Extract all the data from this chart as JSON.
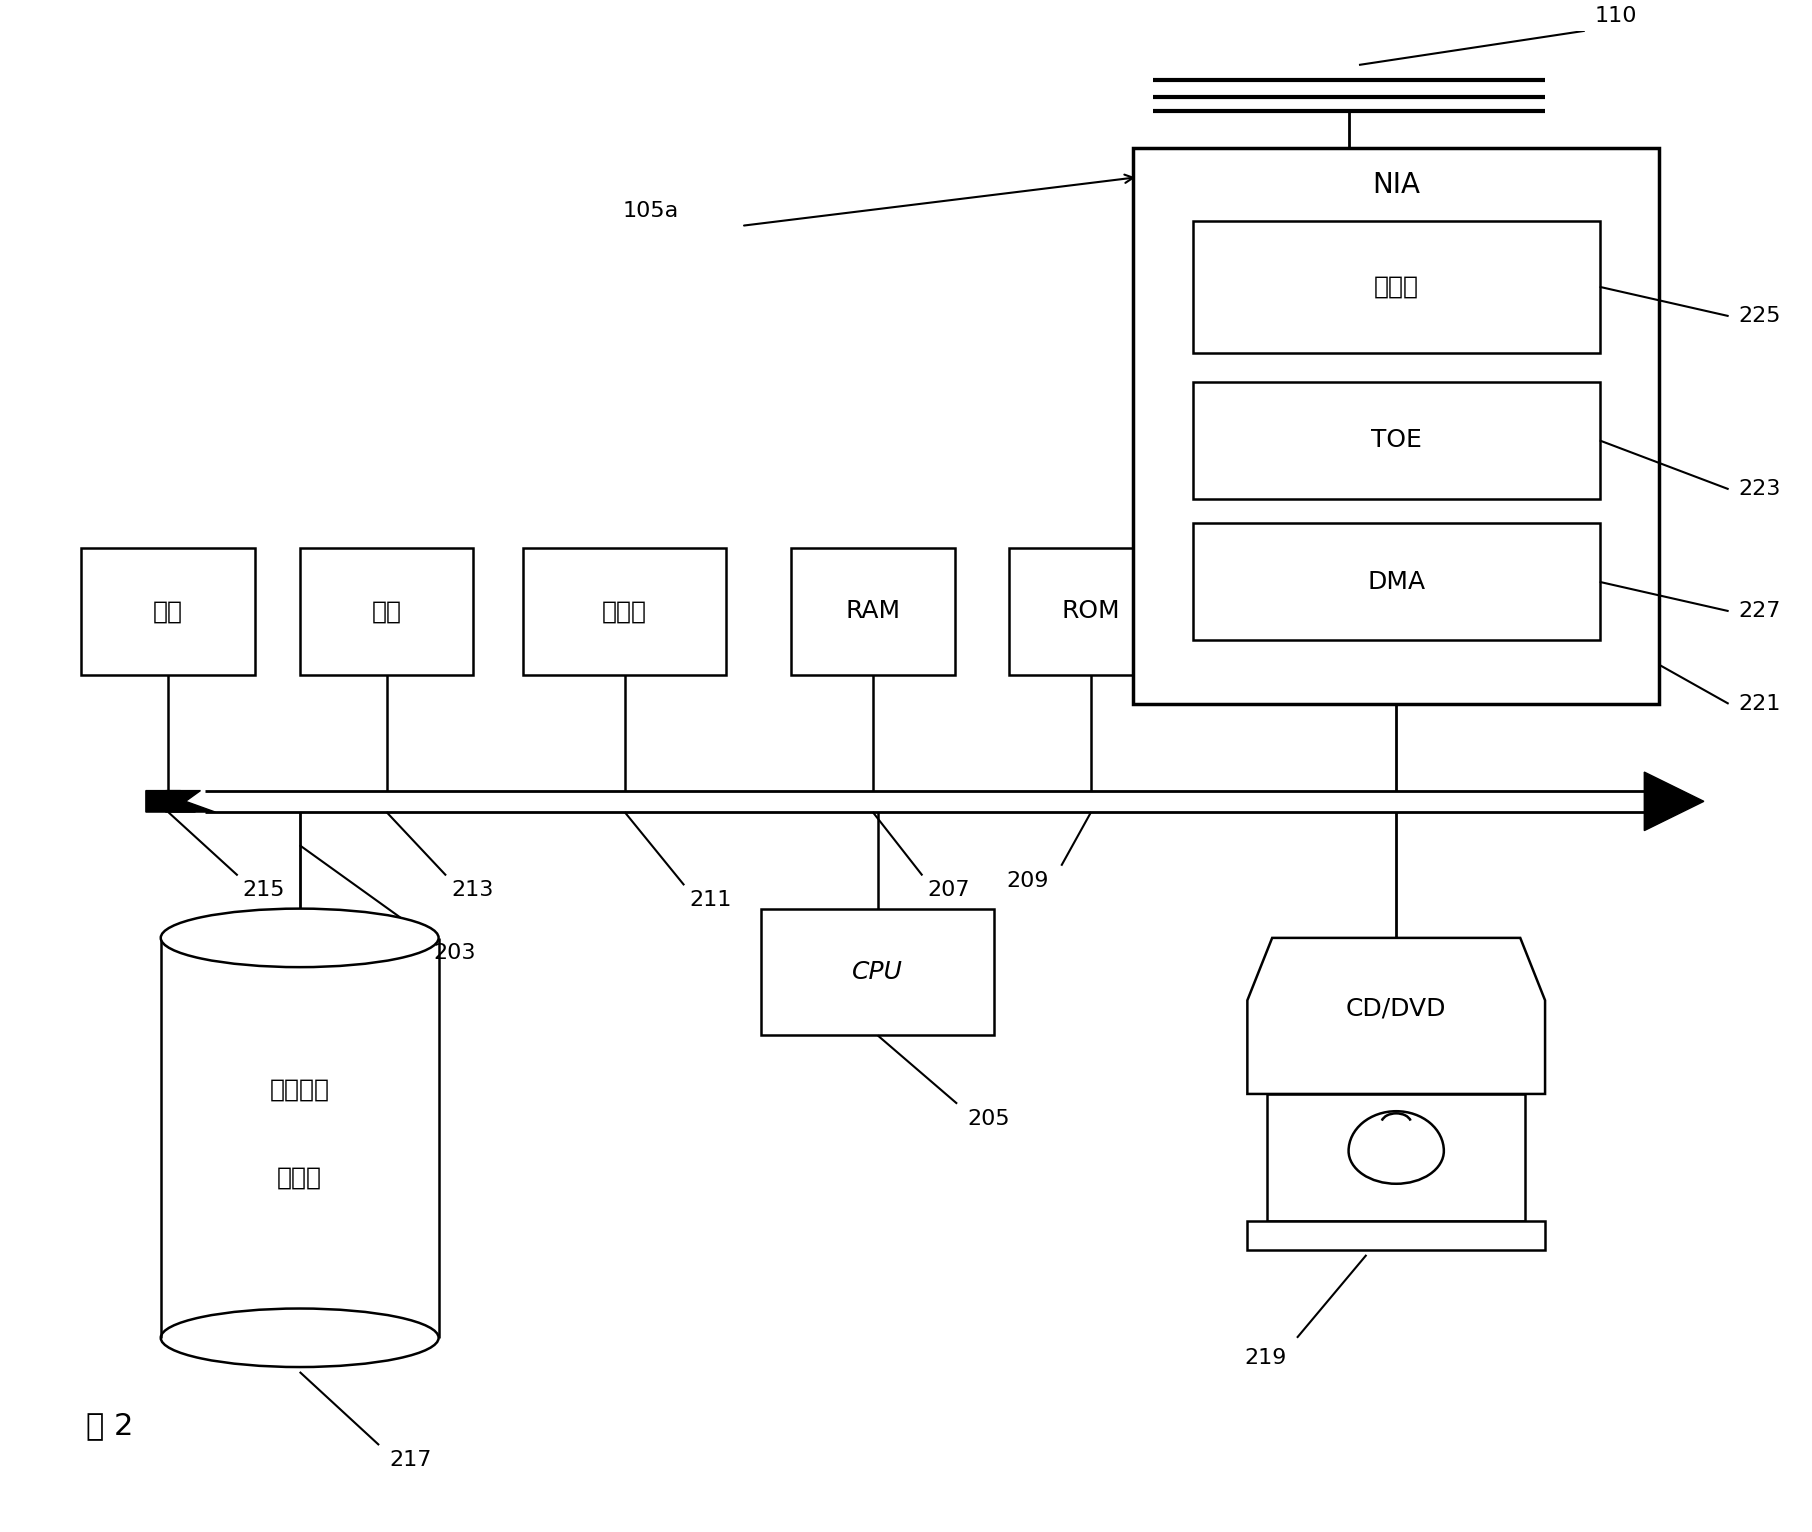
{
  "bg_color": "#ffffff",
  "fig_width": 18.12,
  "fig_height": 15.32,
  "title_label": "图 2",
  "label_105a": "105a",
  "label_110": "110",
  "label_203": "203",
  "label_205": "205",
  "label_207": "207",
  "label_209": "209",
  "label_211": "211",
  "label_213": "213",
  "label_215": "215",
  "label_217": "217",
  "label_219": "219",
  "label_221": "221",
  "label_223": "223",
  "label_225": "225",
  "label_227": "227",
  "box_mouse": "鼠标",
  "box_keyboard": "键盘",
  "box_display": "显示器",
  "box_ram": "RAM",
  "box_rom": "ROM",
  "box_nia": "NIA",
  "box_processor": "处理器",
  "box_toe": "TOE",
  "box_dma": "DMA",
  "box_cpu": "CPU",
  "box_harddisk_line1": "本地硬盘",
  "box_harddisk_line2": "驱动器",
  "box_cddvd": "CD/DVD"
}
